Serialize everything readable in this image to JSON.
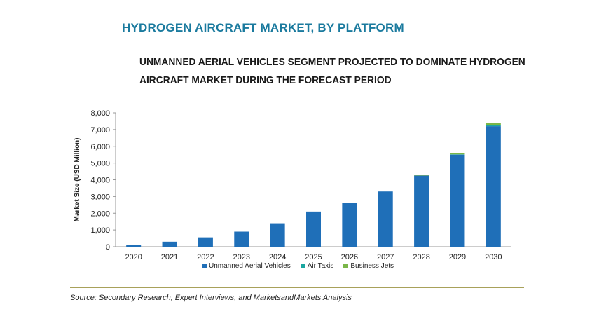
{
  "header": {
    "title": "HYDROGEN AIRCRAFT MARKET, BY PLATFORM",
    "subtitle_line1": "UNMANNED AERIAL VEHICLES SEGMENT PROJECTED TO DOMINATE HYDROGEN",
    "subtitle_line2": "AIRCRAFT MARKET DURING THE FORECAST PERIOD"
  },
  "footer": {
    "source": "Source: Secondary Research, Expert Interviews, and MarketsandMarkets Analysis"
  },
  "colors": {
    "title": "#1a7a9e",
    "uav": "#1f6fb8",
    "air_taxis": "#1aa6a0",
    "business_jets": "#7ab648",
    "divider": "#a8a15a"
  },
  "chart_data": {
    "type": "bar",
    "stacked": true,
    "title": "",
    "xlabel": "",
    "ylabel": "Market Size (USD Million)",
    "ylim": [
      0,
      8000
    ],
    "yticks": [
      0,
      1000,
      2000,
      3000,
      4000,
      5000,
      6000,
      7000,
      8000
    ],
    "ytick_labels": [
      "0",
      "1,000",
      "2,000",
      "3,000",
      "4,000",
      "5,000",
      "6,000",
      "7,000",
      "8,000"
    ],
    "grid": false,
    "legend_position": "bottom",
    "categories": [
      "2020",
      "2021",
      "2022",
      "2023",
      "2024",
      "2025",
      "2026",
      "2027",
      "2028",
      "2029",
      "2030"
    ],
    "series": [
      {
        "name": "Unmanned Aerial Vehicles",
        "color": "#1f6fb8",
        "values": [
          120,
          300,
          560,
          900,
          1400,
          2100,
          2600,
          3300,
          4250,
          5500,
          7200
        ]
      },
      {
        "name": "Air Taxis",
        "color": "#1aa6a0",
        "values": [
          0,
          0,
          0,
          0,
          0,
          0,
          0,
          0,
          0,
          20,
          60
        ]
      },
      {
        "name": "Business Jets",
        "color": "#7ab648",
        "values": [
          0,
          0,
          0,
          0,
          0,
          0,
          0,
          0,
          20,
          80,
          150
        ]
      }
    ]
  }
}
